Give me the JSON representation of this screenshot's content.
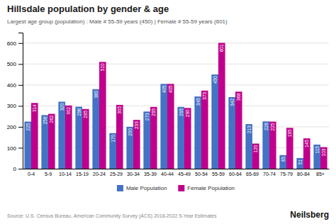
{
  "chart_data": {
    "type": "bar",
    "title": "Hillsdale population by gender & age",
    "subtitle": "Largest age group (population) : Male # 55-59 years (450) | Female # 55-59 years (601)",
    "source": "Source: U.S. Census Bureau, American Community Survey (ACS) 2018-2022 5-Year Estimates",
    "annotations": [
      "Neilsberg"
    ],
    "categories": [
      "0-4",
      "5-9",
      "10-14",
      "15-19",
      "20-24",
      "25-29",
      "30-34",
      "35-39",
      "40-44",
      "45-49",
      "50-54",
      "55-59",
      "60-64",
      "65-69",
      "70-74",
      "75-79",
      "80-84",
      "85+"
    ],
    "series": [
      {
        "name": "Male Population",
        "color": "#4472c4",
        "values": [
          225,
          256,
          320,
          296,
          380,
          170,
          200,
          273,
          405,
          295,
          345,
          450,
          342,
          213,
          226,
          65,
          51,
          115
        ]
      },
      {
        "name": "Female Population",
        "color": "#c0008c",
        "values": [
          314,
          262,
          302,
          285,
          510,
          305,
          233,
          295,
          405,
          290,
          373,
          601,
          368,
          120,
          225,
          195,
          145,
          103
        ]
      }
    ],
    "ylim": [
      0,
      650
    ],
    "yticks": [
      0,
      100,
      200,
      300,
      400,
      500,
      600
    ],
    "grid": true,
    "legend": "bottom",
    "data_labels": true
  }
}
